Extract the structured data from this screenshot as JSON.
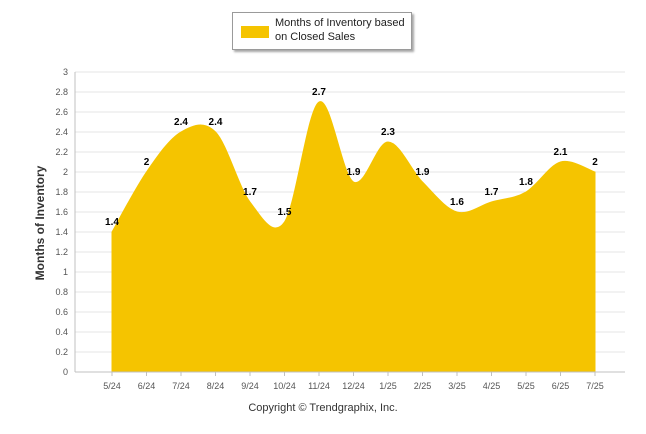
{
  "colors": {
    "area": "#f5c400",
    "grid": "#e6e6e6"
  },
  "footer": "Copyright © Trendgraphix, Inc.",
  "chart_data": {
    "type": "area",
    "categories": [
      "5/24",
      "6/24",
      "7/24",
      "8/24",
      "9/24",
      "10/24",
      "11/24",
      "12/24",
      "1/25",
      "2/25",
      "3/25",
      "4/25",
      "5/25",
      "6/25",
      "7/25"
    ],
    "series": [
      {
        "name": "Months of Inventory based on Closed Sales",
        "values": [
          1.4,
          2,
          2.4,
          2.4,
          1.7,
          1.5,
          2.7,
          1.9,
          2.3,
          1.9,
          1.6,
          1.7,
          1.8,
          2.1,
          2
        ]
      }
    ],
    "ylabel": "Months of Inventory",
    "xlabel": "",
    "ylim": [
      0,
      3
    ],
    "yticks": [
      "0",
      "0.2",
      "0.4",
      "0.6",
      "0.8",
      "1",
      "1.2",
      "1.4",
      "1.6",
      "1.8",
      "2",
      "2.2",
      "2.4",
      "2.6",
      "2.8",
      "3"
    ],
    "grid": true,
    "legend": "top-center"
  }
}
